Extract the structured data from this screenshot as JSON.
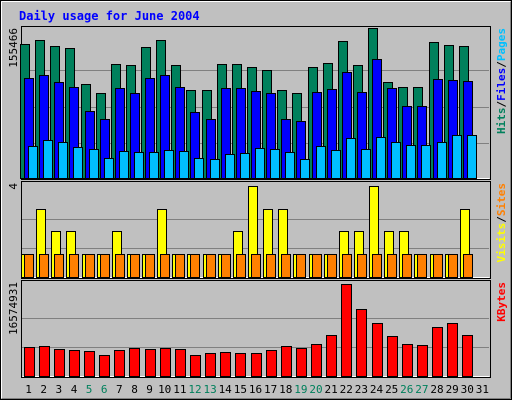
{
  "chart_data": {
    "type": "bar",
    "title": "Daily usage for June 2004",
    "background": "#c0c0c0",
    "days": [
      "1",
      "2",
      "3",
      "4",
      "5",
      "6",
      "7",
      "8",
      "9",
      "10",
      "11",
      "12",
      "13",
      "14",
      "15",
      "16",
      "17",
      "18",
      "19",
      "20",
      "21",
      "22",
      "23",
      "24",
      "25",
      "26",
      "27",
      "28",
      "29",
      "30",
      "31"
    ],
    "weekend_days": [
      "5",
      "6",
      "12",
      "13",
      "19",
      "20",
      "26",
      "27"
    ],
    "weekday_color": "#000000",
    "weekend_color": "#00805c",
    "panels": {
      "hits_files_pages": {
        "ymax_label": "155466",
        "ymax": 155466,
        "side_labels": [
          "Hits",
          "Files",
          "Pages"
        ],
        "separator": "/",
        "series": [
          {
            "name": "Hits",
            "color": "#00805c",
            "values": [
              142000,
              146000,
              140000,
              138000,
              99000,
              90000,
              121000,
              119000,
              139000,
              146000,
              119000,
              93000,
              93000,
              121000,
              121000,
              117000,
              114000,
              93000,
              90000,
              117000,
              122000,
              145000,
              119000,
              159000,
              102000,
              96000,
              96000,
              144000,
              141000,
              140000,
              0
            ]
          },
          {
            "name": "Files",
            "color": "#0000ff",
            "values": [
              106000,
              109000,
              102000,
              96000,
              71000,
              62000,
              95000,
              90000,
              106000,
              109000,
              96000,
              70000,
              62000,
              95000,
              95000,
              92000,
              90000,
              62000,
              60000,
              91000,
              94000,
              112000,
              91000,
              126000,
              95000,
              76000,
              76000,
              105000,
              104000,
              103000,
              0
            ]
          },
          {
            "name": "Pages",
            "color": "#00bfff",
            "values": [
              34000,
              40000,
              38000,
              33000,
              31000,
              21000,
              29000,
              28000,
              28000,
              30000,
              29000,
              21000,
              20000,
              25000,
              26000,
              32000,
              31000,
              28000,
              20000,
              34000,
              30000,
              42000,
              31000,
              43000,
              38000,
              35000,
              35000,
              38000,
              45000,
              46000,
              0
            ]
          }
        ]
      },
      "visits_sites": {
        "ymax_label": "4",
        "ymax": 4,
        "side_labels": [
          "Visits",
          "Sites"
        ],
        "separator": "/",
        "series": [
          {
            "name": "Visits",
            "color": "#ffff00",
            "values": [
              1,
              3,
              2,
              2,
              1,
              1,
              2,
              1,
              1,
              3,
              1,
              1,
              1,
              1,
              2,
              4,
              3,
              3,
              1,
              1,
              1,
              2,
              2,
              4,
              2,
              2,
              1,
              1,
              1,
              3,
              0
            ]
          },
          {
            "name": "Sites",
            "color": "#ff8000",
            "values": [
              1,
              1,
              1,
              1,
              1,
              1,
              1,
              1,
              1,
              1,
              1,
              1,
              1,
              1,
              1,
              1,
              1,
              1,
              1,
              1,
              1,
              1,
              1,
              1,
              1,
              1,
              1,
              1,
              1,
              1,
              0
            ]
          }
        ]
      },
      "kbytes": {
        "ymax_label": "16574931",
        "ymax": 16574931,
        "side_labels": [
          "KBytes"
        ],
        "series": [
          {
            "name": "KBytes",
            "color": "#ff0000",
            "values": [
              5300000,
              5400000,
              4900000,
              4700000,
              4500000,
              3900000,
              4700000,
              5100000,
              5000000,
              5100000,
              4900000,
              3900000,
              4200000,
              4300000,
              4100000,
              4200000,
              4800000,
              5500000,
              5100000,
              5800000,
              7500000,
              16800000,
              12200000,
              9700000,
              7200000,
              5800000,
              5600000,
              9000000,
              9600000,
              7400000,
              0
            ]
          }
        ]
      }
    }
  }
}
